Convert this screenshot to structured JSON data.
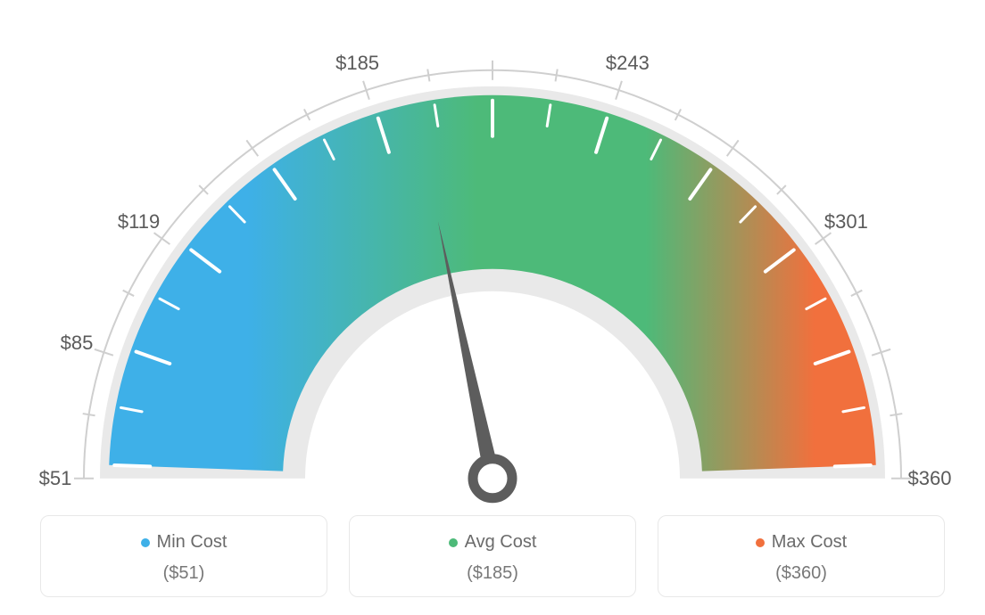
{
  "gauge": {
    "type": "gauge",
    "min_value": 51,
    "max_value": 360,
    "avg_value": 185,
    "needle_value": 185,
    "scale_labels": [
      "$51",
      "$85",
      "$119",
      "",
      "$185",
      "",
      "$243",
      "",
      "$301",
      "",
      "$360"
    ],
    "scale_positions_deg": [
      180,
      162,
      144,
      126,
      108,
      90,
      72,
      54,
      36,
      18,
      0
    ],
    "major_ticks_deg": [
      180,
      162,
      144,
      108,
      72,
      36,
      0
    ],
    "tick_total": 21,
    "colors": {
      "min": "#3eb0e8",
      "avg": "#4dba79",
      "max": "#f1703d",
      "track": "#e9e9e9",
      "needle": "#5d5d5d",
      "outer_arc": "#cfcfcf",
      "tick": "#ffffff",
      "background": "#ffffff",
      "label_text": "#5a5a5a"
    },
    "geometry": {
      "outer_radius": 430,
      "inner_radius": 235,
      "track_outer": 440,
      "track_inner": 210,
      "label_radius": 490,
      "center_y_ratio": 0.92
    },
    "label_fontsize": 22,
    "legend_fontsize": 20
  },
  "legend": {
    "items": [
      {
        "name": "Min Cost",
        "value": "($51)",
        "color": "#3eb0e8"
      },
      {
        "name": "Avg Cost",
        "value": "($185)",
        "color": "#4dba79"
      },
      {
        "name": "Max Cost",
        "value": "($360)",
        "color": "#f1703d"
      }
    ]
  }
}
